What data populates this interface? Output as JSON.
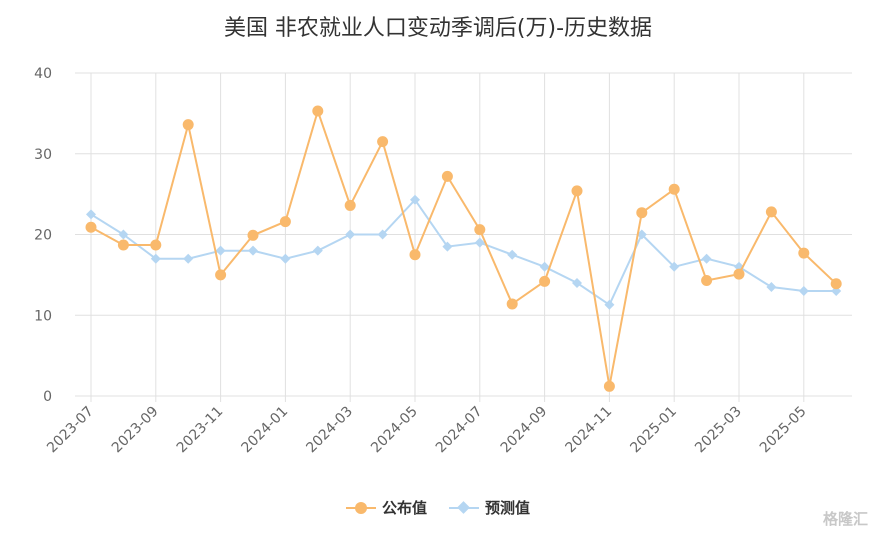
{
  "chart_data": {
    "type": "line",
    "title": "美国 非农就业人口变动季调后(万)-历史数据",
    "categories": [
      "2023-07",
      "2023-08",
      "2023-09",
      "2023-10",
      "2023-11",
      "2023-12",
      "2024-01",
      "2024-02",
      "2024-03",
      "2024-04",
      "2024-05",
      "2024-06",
      "2024-07",
      "2024-08",
      "2024-09",
      "2024-10",
      "2024-11",
      "2024-12",
      "2025-01",
      "2025-02",
      "2025-03",
      "2025-04",
      "2025-05",
      "2025-06"
    ],
    "tick_labels": [
      "2023-07",
      "2023-09",
      "2023-11",
      "2024-01",
      "2024-03",
      "2024-05",
      "2024-07",
      "2024-09",
      "2024-11",
      "2025-01",
      "2025-03",
      "2025-05"
    ],
    "ylim": [
      0,
      40
    ],
    "yticks": [
      0,
      10,
      20,
      30,
      40
    ],
    "series": [
      {
        "name": "公布值",
        "color": "#f9b96c",
        "marker": "circle",
        "values": [
          20.9,
          18.7,
          18.7,
          33.6,
          15.0,
          19.9,
          21.6,
          35.3,
          23.6,
          31.5,
          17.5,
          27.2,
          20.6,
          11.4,
          14.2,
          25.4,
          1.2,
          22.7,
          25.6,
          14.3,
          15.1,
          22.8,
          17.7,
          13.9
        ]
      },
      {
        "name": "预测值",
        "color": "#b5d6f2",
        "marker": "diamond",
        "values": [
          22.5,
          20.0,
          17.0,
          17.0,
          18.0,
          18.0,
          17.0,
          18.0,
          20.0,
          20.0,
          24.3,
          18.5,
          19.0,
          17.5,
          16.0,
          14.0,
          11.3,
          20.0,
          16.0,
          17.0,
          16.0,
          13.5,
          13.0,
          13.0
        ]
      }
    ],
    "legend": {
      "position": "bottom"
    }
  },
  "watermark": "格隆汇"
}
